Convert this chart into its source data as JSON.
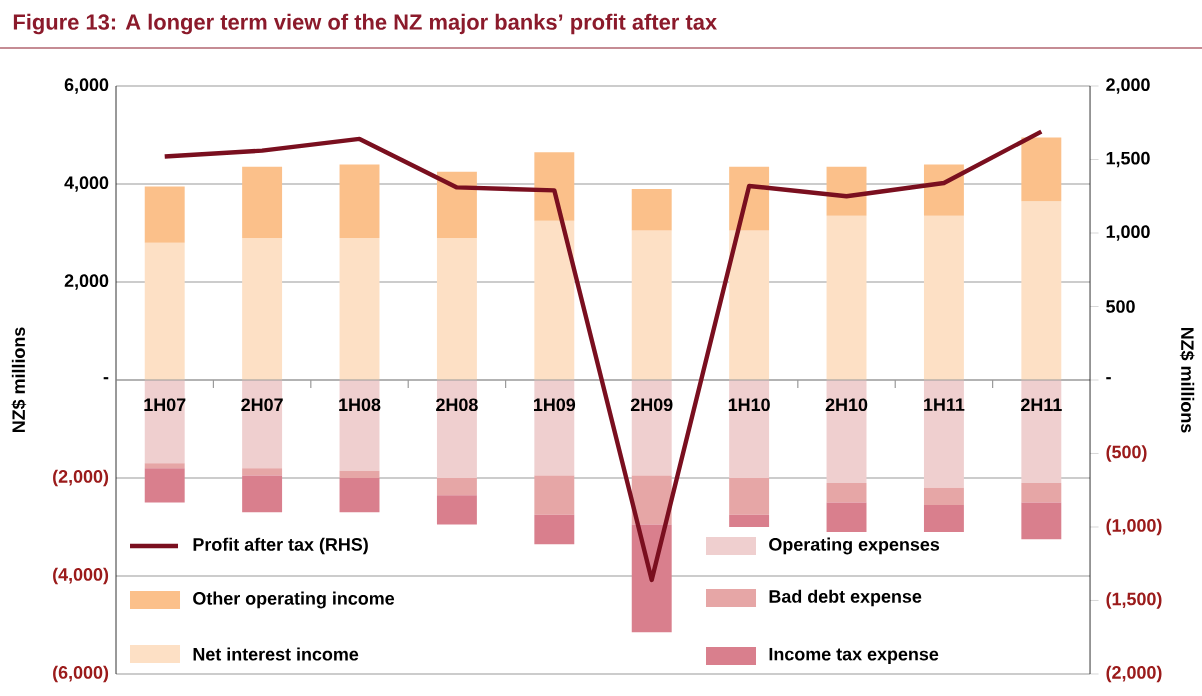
{
  "chart_data": {
    "type": "bar",
    "stacked": true,
    "title": "Figure 13: A longer term view of the NZ major banks’ profit after tax",
    "ylabel": "NZ$ millions",
    "y2label": "NZ$ millions",
    "categories": [
      "1H07",
      "2H07",
      "1H08",
      "2H08",
      "1H09",
      "2H09",
      "1H10",
      "2H10",
      "1H11",
      "2H11"
    ],
    "series": [
      {
        "name": "Net interest income",
        "color": "#fde0c5",
        "values": [
          2800,
          2900,
          2900,
          2900,
          3250,
          3050,
          3050,
          3350,
          3350,
          3650
        ]
      },
      {
        "name": "Other operating income",
        "color": "#fbc08a",
        "values": [
          1150,
          1450,
          1500,
          1350,
          1400,
          850,
          1300,
          1000,
          1050,
          1300
        ]
      },
      {
        "name": "Operating expenses",
        "color": "#efcfcf",
        "values": [
          -1700,
          -1800,
          -1850,
          -2000,
          -1950,
          -1950,
          -2000,
          -2100,
          -2200,
          -2100
        ]
      },
      {
        "name": "Bad debt expense",
        "color": "#e6a6a6",
        "values": [
          -100,
          -150,
          -150,
          -350,
          -800,
          -1000,
          -750,
          -400,
          -350,
          -400
        ]
      },
      {
        "name": "Income tax expense",
        "color": "#d97f8d",
        "values": [
          -700,
          -750,
          -700,
          -600,
          -600,
          -2200,
          -250,
          -600,
          -550,
          -750
        ]
      },
      {
        "name": "Profit after tax (RHS)",
        "type": "line",
        "axis": "y2",
        "color": "#7a0f1f",
        "values": [
          1520,
          1560,
          1640,
          1310,
          1290,
          -1360,
          1320,
          1250,
          1340,
          1690
        ]
      }
    ],
    "ylim": [
      -6000,
      6000
    ],
    "yticks": [
      {
        "value": -6000,
        "label": "(6,000)"
      },
      {
        "value": -4000,
        "label": "(4,000)"
      },
      {
        "value": -2000,
        "label": "(2,000)"
      },
      {
        "value": 0,
        "label": "-"
      },
      {
        "value": 2000,
        "label": "2,000"
      },
      {
        "value": 4000,
        "label": "4,000"
      },
      {
        "value": 6000,
        "label": "6,000"
      }
    ],
    "y2lim": [
      -2000,
      2000
    ],
    "y2ticks": [
      {
        "value": -2000,
        "label": "(2,000)"
      },
      {
        "value": -1500,
        "label": "(1,500)"
      },
      {
        "value": -1000,
        "label": "(1,000)"
      },
      {
        "value": -500,
        "label": "(500)"
      },
      {
        "value": 0,
        "label": "-"
      },
      {
        "value": 500,
        "label": "500"
      },
      {
        "value": 1000,
        "label": "1,000"
      },
      {
        "value": 1500,
        "label": "1,500"
      },
      {
        "value": 2000,
        "label": "2,000"
      }
    ],
    "grid": "y",
    "legend": "bottom",
    "marker": "none",
    "line_style": "solid"
  }
}
